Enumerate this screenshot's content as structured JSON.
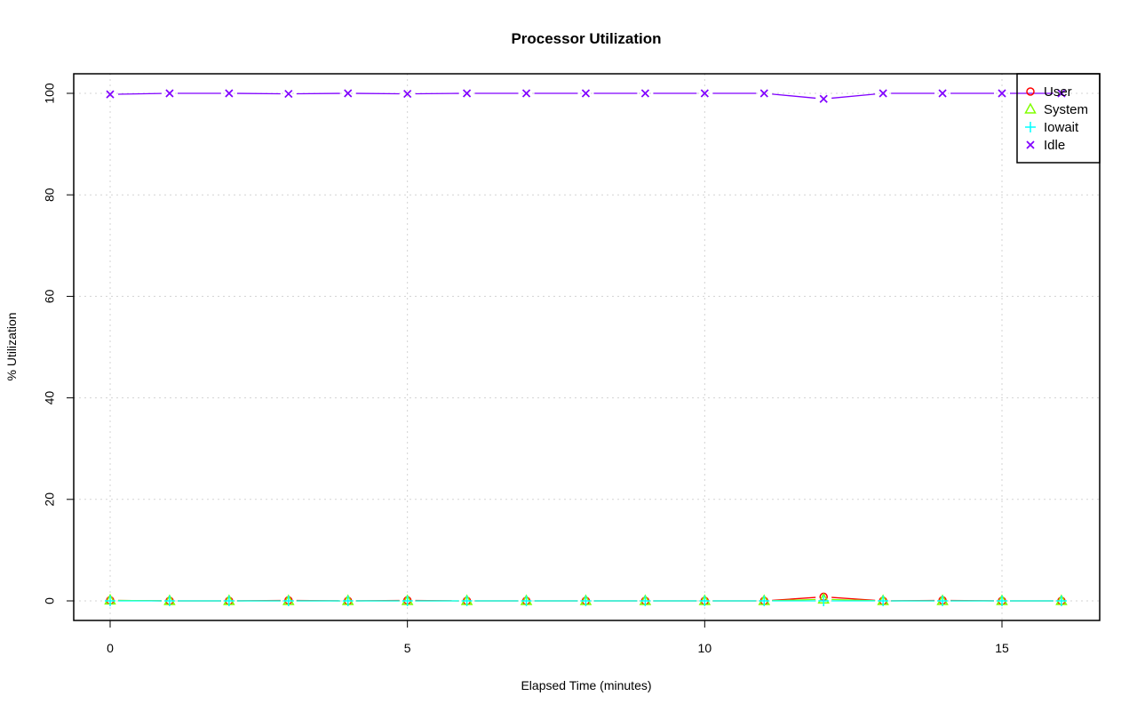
{
  "chart_data": {
    "type": "line",
    "title": "Processor Utilization",
    "xlabel": "Elapsed Time (minutes)",
    "ylabel": "% Utilization",
    "xlim": [
      -0.6,
      16.6
    ],
    "ylim": [
      -4,
      104
    ],
    "xticks": [
      0,
      5,
      10,
      15
    ],
    "yticks": [
      0,
      20,
      40,
      60,
      80,
      100
    ],
    "grid": true,
    "legend_position": "top-right",
    "x": [
      0,
      1,
      2,
      3,
      4,
      5,
      6,
      7,
      8,
      9,
      10,
      11,
      12,
      13,
      14,
      15,
      16
    ],
    "series": [
      {
        "name": "User",
        "color": "#ff0000",
        "marker": "circle",
        "values": [
          0.1,
          0,
          0,
          0.1,
          0,
          0.1,
          0,
          0,
          0,
          0,
          0,
          0,
          0.8,
          0,
          0.1,
          0,
          0
        ]
      },
      {
        "name": "System",
        "color": "#80ff00",
        "marker": "triangle",
        "values": [
          0.1,
          0,
          0,
          0,
          0,
          0,
          0,
          0,
          0,
          0,
          0,
          0,
          0.3,
          0,
          0,
          0,
          0
        ]
      },
      {
        "name": "Iowait",
        "color": "#00ffff",
        "marker": "plus",
        "values": [
          0,
          0,
          0,
          0,
          0,
          0,
          0,
          0,
          0,
          0,
          0,
          0,
          0,
          0,
          0,
          0,
          0
        ]
      },
      {
        "name": "Idle",
        "color": "#8000ff",
        "marker": "cross",
        "values": [
          99.8,
          100,
          100,
          99.9,
          100,
          99.9,
          100,
          100,
          100,
          100,
          100,
          100,
          98.9,
          100,
          100,
          100,
          100
        ]
      }
    ]
  }
}
